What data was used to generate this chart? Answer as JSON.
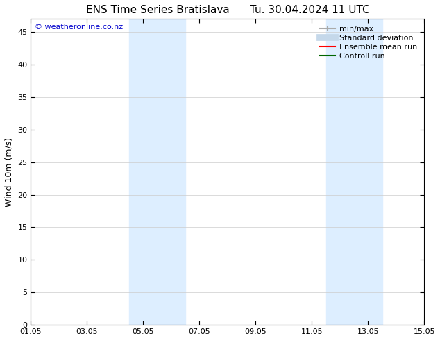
{
  "title": "ENS Time Series Bratislava      Tu. 30.04.2024 11 UTC",
  "ylabel": "Wind 10m (m/s)",
  "xlabel": "",
  "ylim": [
    0,
    47
  ],
  "yticks": [
    0,
    5,
    10,
    15,
    20,
    25,
    30,
    35,
    40,
    45
  ],
  "xtick_labels": [
    "01.05",
    "03.05",
    "05.05",
    "07.05",
    "09.05",
    "11.05",
    "13.05",
    "15.05"
  ],
  "xtick_positions": [
    0,
    2,
    4,
    6,
    8,
    10,
    12,
    14
  ],
  "xlim": [
    0,
    14
  ],
  "shaded_bands": [
    {
      "xstart": 3.5,
      "xend": 5.5
    },
    {
      "xstart": 10.5,
      "xend": 12.5
    }
  ],
  "shaded_color": "#ddeeff",
  "background_color": "#ffffff",
  "watermark_text": "© weatheronline.co.nz",
  "watermark_color": "#0000cc",
  "legend_entries": [
    {
      "label": "min/max",
      "color": "#aaaaaa"
    },
    {
      "label": "Standard deviation",
      "color": "#c5d8ea"
    },
    {
      "label": "Ensemble mean run",
      "color": "#ff0000"
    },
    {
      "label": "Controll run",
      "color": "#006600"
    }
  ],
  "title_fontsize": 11,
  "axis_label_fontsize": 9,
  "tick_fontsize": 8,
  "legend_fontsize": 8,
  "watermark_fontsize": 8
}
